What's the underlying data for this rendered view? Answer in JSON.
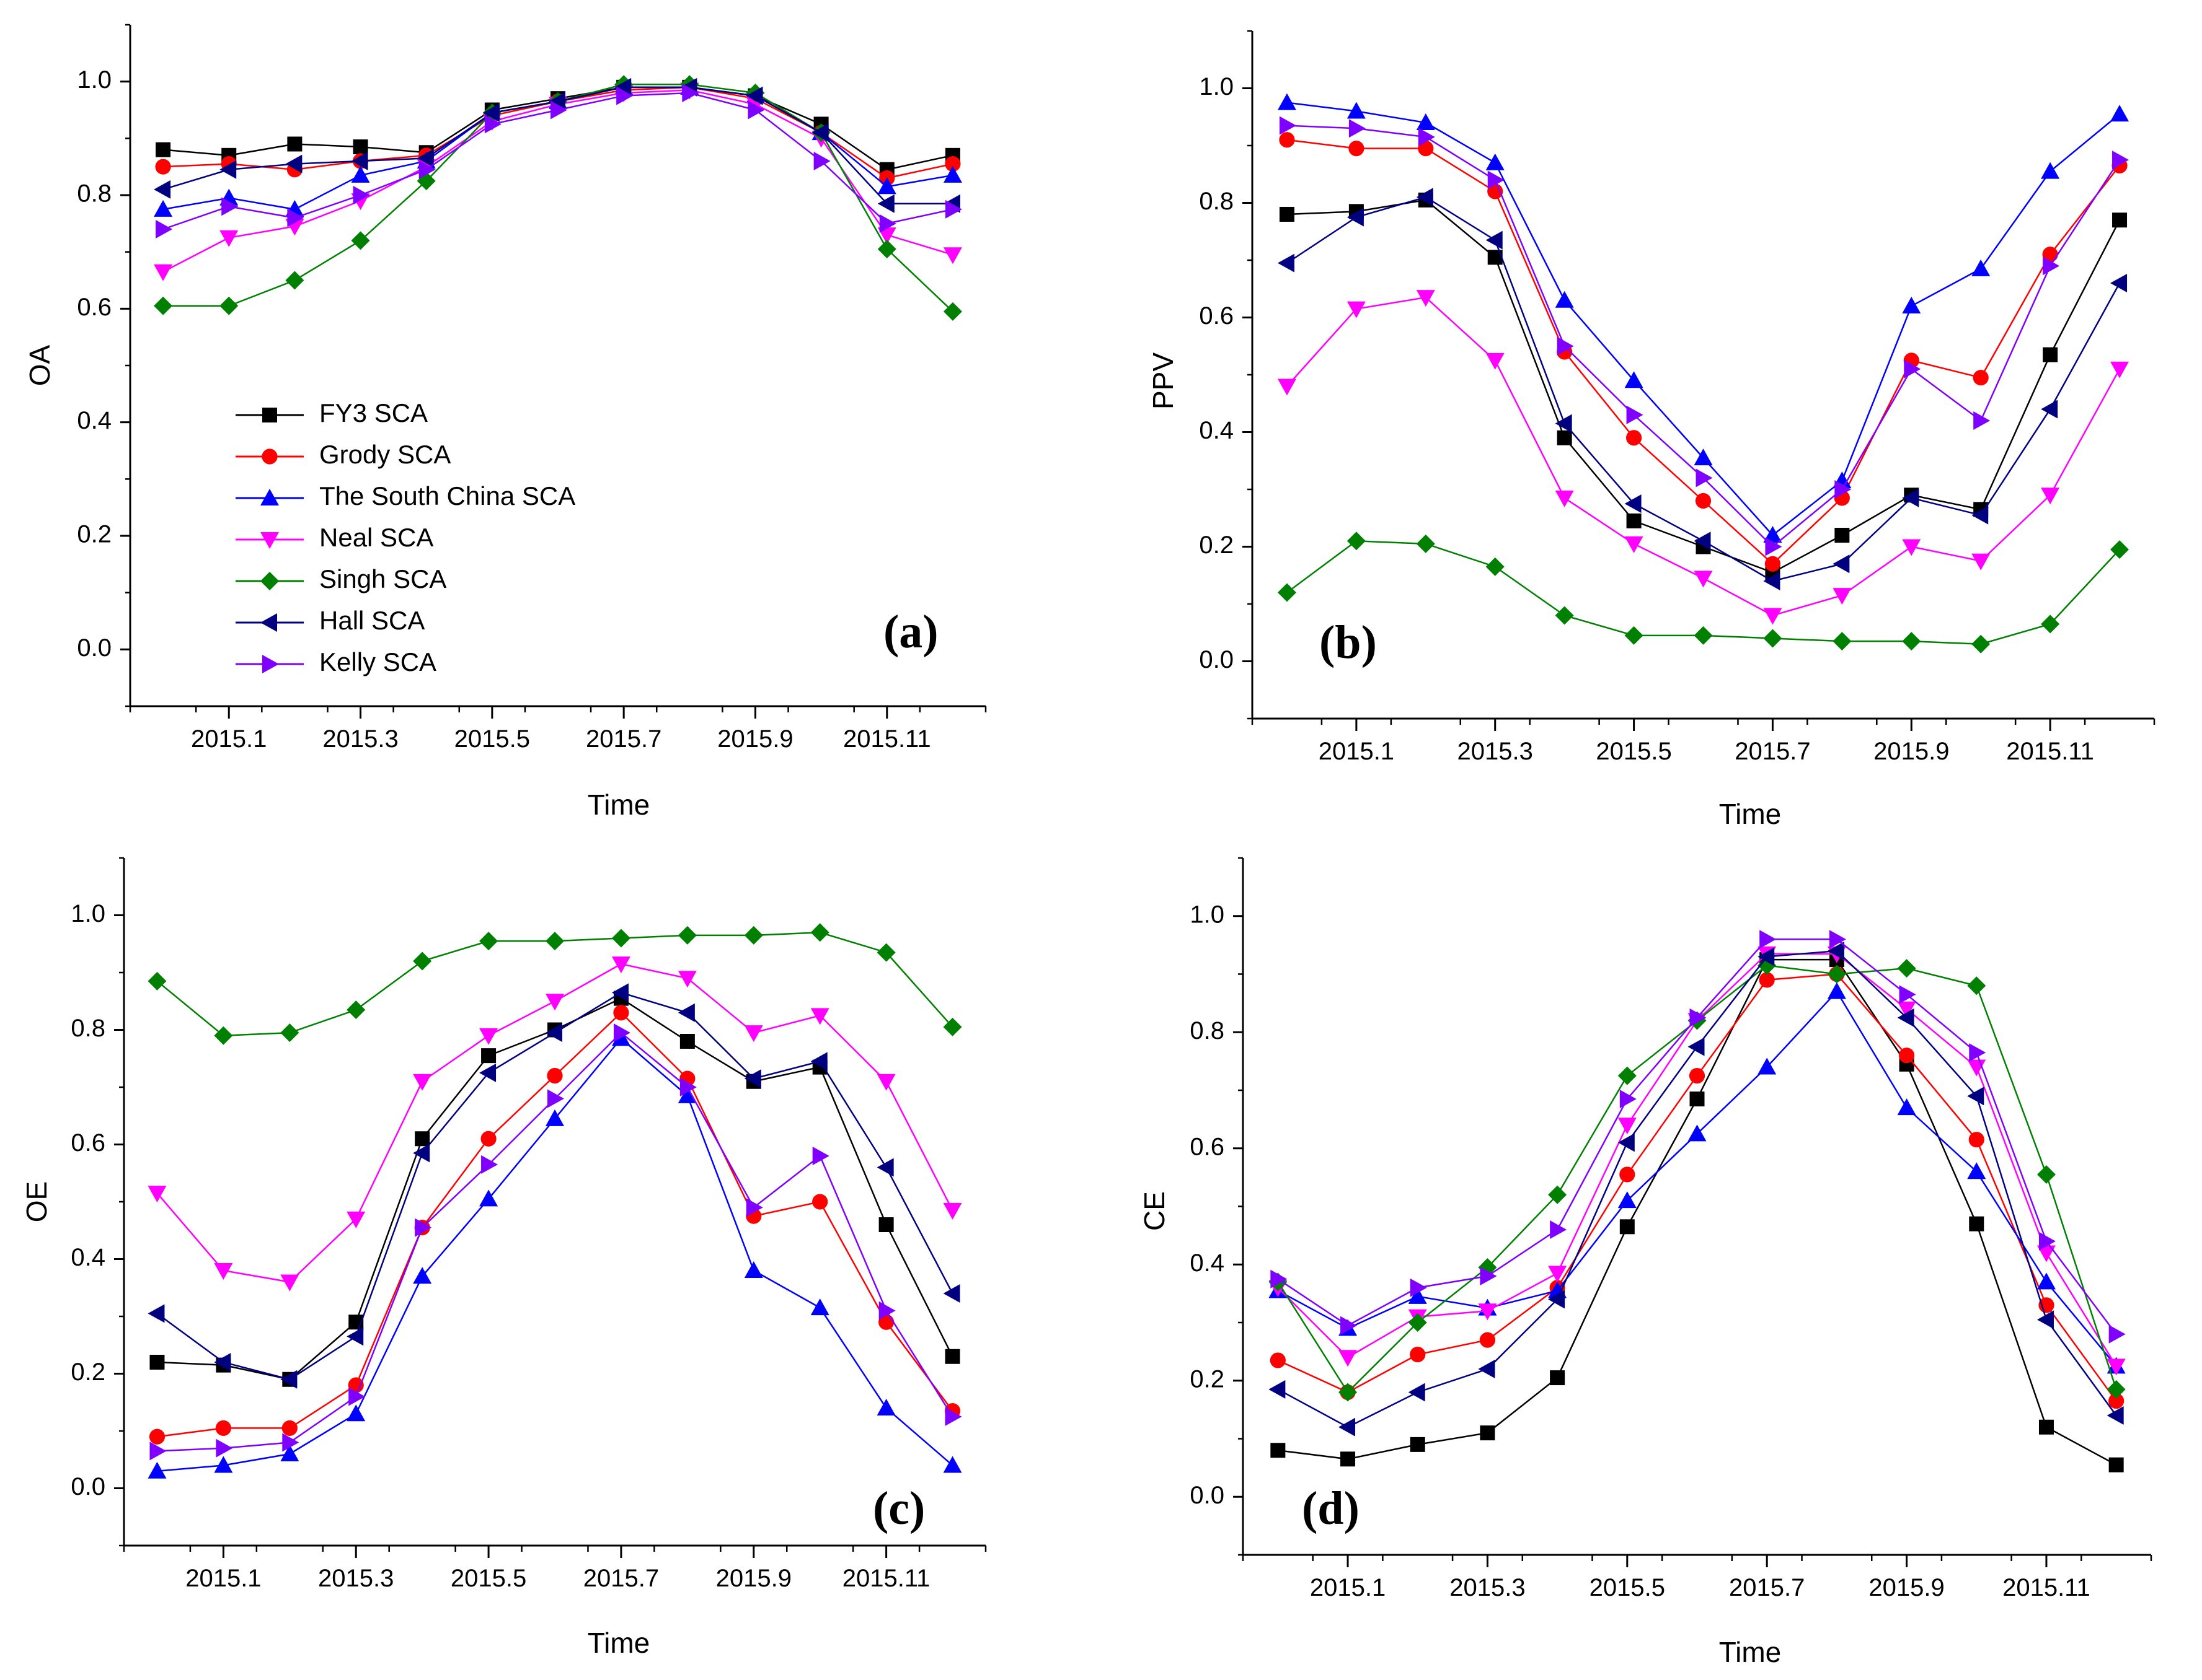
{
  "figure": {
    "series_styles": [
      {
        "name": "FY3 SCA",
        "color": "#000000",
        "marker": "square"
      },
      {
        "name": "Grody SCA",
        "color": "#ff0000",
        "marker": "circle"
      },
      {
        "name": "The South China SCA",
        "color": "#0000ff",
        "marker": "triangle-up"
      },
      {
        "name": "Neal SCA",
        "color": "#ff00ff",
        "marker": "triangle-down"
      },
      {
        "name": "Singh SCA",
        "color": "#008000",
        "marker": "diamond"
      },
      {
        "name": "Hall SCA",
        "color": "#000080",
        "marker": "triangle-left"
      },
      {
        "name": "Kelly SCA",
        "color": "#8000ff",
        "marker": "triangle-right"
      }
    ]
  },
  "chart_data": [
    {
      "type": "line",
      "panel_label": "(a)",
      "title": "",
      "xlabel": "Time",
      "ylabel": "OA",
      "x_ticks": [
        "2015.1",
        "2015.3",
        "2015.5",
        "2015.7",
        "2015.9",
        "2015.11"
      ],
      "y_ticks": [
        "0.0",
        "0.2",
        "0.4",
        "0.6",
        "0.8",
        "1.0"
      ],
      "ylim": [
        -0.1,
        1.1
      ],
      "xlim": [
        -0.5,
        12.5
      ],
      "x": [
        0,
        1,
        2,
        3,
        4,
        5,
        6,
        7,
        8,
        9,
        10,
        11,
        12
      ],
      "legend": "inside-lower-left",
      "series": [
        {
          "name": "FY3 SCA",
          "values": [
            0.88,
            0.87,
            0.89,
            0.885,
            0.875,
            0.95,
            0.97,
            0.99,
            0.99,
            0.975,
            0.925,
            0.845,
            0.87
          ]
        },
        {
          "name": "Grody SCA",
          "values": [
            0.85,
            0.855,
            0.845,
            0.86,
            0.87,
            0.94,
            0.965,
            0.985,
            0.99,
            0.97,
            0.91,
            0.83,
            0.855
          ]
        },
        {
          "name": "The South China SCA",
          "values": [
            0.775,
            0.795,
            0.775,
            0.835,
            0.86,
            0.945,
            0.965,
            0.99,
            0.99,
            0.975,
            0.91,
            0.815,
            0.835
          ]
        },
        {
          "name": "Neal SCA",
          "values": [
            0.665,
            0.725,
            0.745,
            0.79,
            0.85,
            0.93,
            0.96,
            0.98,
            0.985,
            0.96,
            0.9,
            0.73,
            0.695
          ]
        },
        {
          "name": "Singh SCA",
          "values": [
            0.605,
            0.605,
            0.65,
            0.72,
            0.825,
            0.945,
            0.965,
            0.995,
            0.995,
            0.98,
            0.91,
            0.705,
            0.595
          ]
        },
        {
          "name": "Hall SCA",
          "values": [
            0.81,
            0.845,
            0.855,
            0.86,
            0.865,
            0.945,
            0.965,
            0.99,
            0.99,
            0.975,
            0.91,
            0.785,
            0.785
          ]
        },
        {
          "name": "Kelly SCA",
          "values": [
            0.74,
            0.78,
            0.76,
            0.8,
            0.845,
            0.925,
            0.95,
            0.975,
            0.98,
            0.95,
            0.86,
            0.75,
            0.775
          ]
        }
      ]
    },
    {
      "type": "line",
      "panel_label": "(b)",
      "title": "",
      "xlabel": "Time",
      "ylabel": "PPV",
      "x_ticks": [
        "2015.1",
        "2015.3",
        "2015.5",
        "2015.7",
        "2015.9",
        "2015.11"
      ],
      "y_ticks": [
        "0.0",
        "0.2",
        "0.4",
        "0.6",
        "0.8",
        "1.0"
      ],
      "ylim": [
        -0.1,
        1.1
      ],
      "xlim": [
        -0.5,
        12.5
      ],
      "x": [
        0,
        1,
        2,
        3,
        4,
        5,
        6,
        7,
        8,
        9,
        10,
        11,
        12
      ],
      "series": [
        {
          "name": "FY3 SCA",
          "values": [
            0.78,
            0.785,
            0.805,
            0.705,
            0.39,
            0.245,
            0.2,
            0.155,
            0.22,
            0.29,
            0.265,
            0.535,
            0.77
          ]
        },
        {
          "name": "Grody SCA",
          "values": [
            0.91,
            0.895,
            0.895,
            0.82,
            0.54,
            0.39,
            0.28,
            0.17,
            0.285,
            0.525,
            0.495,
            0.71,
            0.865
          ]
        },
        {
          "name": "The South China SCA",
          "values": [
            0.975,
            0.96,
            0.94,
            0.87,
            0.63,
            0.49,
            0.355,
            0.22,
            0.315,
            0.62,
            0.685,
            0.855,
            0.955
          ]
        },
        {
          "name": "Neal SCA",
          "values": [
            0.48,
            0.615,
            0.635,
            0.525,
            0.285,
            0.205,
            0.145,
            0.08,
            0.115,
            0.2,
            0.175,
            0.29,
            0.51
          ]
        },
        {
          "name": "Singh SCA",
          "values": [
            0.12,
            0.21,
            0.205,
            0.165,
            0.08,
            0.045,
            0.045,
            0.04,
            0.035,
            0.035,
            0.03,
            0.065,
            0.195
          ]
        },
        {
          "name": "Hall SCA",
          "values": [
            0.695,
            0.775,
            0.81,
            0.735,
            0.415,
            0.275,
            0.21,
            0.14,
            0.17,
            0.285,
            0.255,
            0.44,
            0.66
          ]
        },
        {
          "name": "Kelly SCA",
          "values": [
            0.935,
            0.93,
            0.915,
            0.84,
            0.55,
            0.43,
            0.32,
            0.2,
            0.3,
            0.51,
            0.42,
            0.69,
            0.875
          ]
        }
      ]
    },
    {
      "type": "line",
      "panel_label": "(c)",
      "title": "",
      "xlabel": "Time",
      "ylabel": "OE",
      "x_ticks": [
        "2015.1",
        "2015.3",
        "2015.5",
        "2015.7",
        "2015.9",
        "2015.11"
      ],
      "y_ticks": [
        "0.0",
        "0.2",
        "0.4",
        "0.6",
        "0.8",
        "1.0"
      ],
      "ylim": [
        -0.1,
        1.1
      ],
      "xlim": [
        -0.5,
        12.5
      ],
      "x": [
        0,
        1,
        2,
        3,
        4,
        5,
        6,
        7,
        8,
        9,
        10,
        11,
        12
      ],
      "series": [
        {
          "name": "FY3 SCA",
          "values": [
            0.22,
            0.215,
            0.19,
            0.29,
            0.61,
            0.755,
            0.8,
            0.855,
            0.78,
            0.71,
            0.735,
            0.46,
            0.23
          ]
        },
        {
          "name": "Grody SCA",
          "values": [
            0.09,
            0.105,
            0.105,
            0.18,
            0.455,
            0.61,
            0.72,
            0.83,
            0.715,
            0.475,
            0.5,
            0.29,
            0.135
          ]
        },
        {
          "name": "The South China SCA",
          "values": [
            0.03,
            0.04,
            0.06,
            0.13,
            0.37,
            0.505,
            0.645,
            0.785,
            0.685,
            0.38,
            0.315,
            0.14,
            0.04
          ]
        },
        {
          "name": "Neal SCA",
          "values": [
            0.515,
            0.38,
            0.36,
            0.47,
            0.71,
            0.79,
            0.85,
            0.915,
            0.89,
            0.795,
            0.825,
            0.71,
            0.485
          ]
        },
        {
          "name": "Singh SCA",
          "values": [
            0.885,
            0.79,
            0.795,
            0.835,
            0.92,
            0.955,
            0.955,
            0.96,
            0.965,
            0.965,
            0.97,
            0.935,
            0.805
          ]
        },
        {
          "name": "Hall SCA",
          "values": [
            0.305,
            0.22,
            0.19,
            0.265,
            0.585,
            0.725,
            0.795,
            0.865,
            0.83,
            0.715,
            0.745,
            0.56,
            0.34
          ]
        },
        {
          "name": "Kelly SCA",
          "values": [
            0.065,
            0.07,
            0.08,
            0.16,
            0.455,
            0.565,
            0.68,
            0.795,
            0.7,
            0.49,
            0.58,
            0.31,
            0.125
          ]
        }
      ]
    },
    {
      "type": "line",
      "panel_label": "(d)",
      "title": "",
      "xlabel": "Time",
      "ylabel": "CE",
      "x_ticks": [
        "2015.1",
        "2015.3",
        "2015.5",
        "2015.7",
        "2015.9",
        "2015.11"
      ],
      "y_ticks": [
        "0.0",
        "0.2",
        "0.4",
        "0.6",
        "0.8",
        "1.0"
      ],
      "ylim": [
        -0.1,
        1.1
      ],
      "xlim": [
        -0.5,
        12.5
      ],
      "x": [
        0,
        1,
        2,
        3,
        4,
        5,
        6,
        7,
        8,
        9,
        10,
        11,
        12
      ],
      "series": [
        {
          "name": "FY3 SCA",
          "values": [
            0.08,
            0.065,
            0.09,
            0.11,
            0.205,
            0.465,
            0.685,
            0.925,
            0.925,
            0.745,
            0.47,
            0.12,
            0.055
          ]
        },
        {
          "name": "Grody SCA",
          "values": [
            0.235,
            0.18,
            0.245,
            0.27,
            0.36,
            0.555,
            0.725,
            0.89,
            0.9,
            0.76,
            0.615,
            0.33,
            0.165
          ]
        },
        {
          "name": "The South China SCA",
          "values": [
            0.355,
            0.29,
            0.345,
            0.325,
            0.355,
            0.51,
            0.625,
            0.74,
            0.87,
            0.67,
            0.56,
            0.37,
            0.225
          ]
        },
        {
          "name": "Neal SCA",
          "values": [
            0.36,
            0.24,
            0.31,
            0.32,
            0.385,
            0.64,
            0.82,
            0.935,
            0.935,
            0.84,
            0.74,
            0.42,
            0.225
          ]
        },
        {
          "name": "Singh SCA",
          "values": [
            0.37,
            0.18,
            0.3,
            0.395,
            0.52,
            0.725,
            0.82,
            0.915,
            0.9,
            0.91,
            0.88,
            0.555,
            0.185
          ]
        },
        {
          "name": "Hall SCA",
          "values": [
            0.185,
            0.12,
            0.18,
            0.22,
            0.34,
            0.61,
            0.775,
            0.93,
            0.94,
            0.825,
            0.69,
            0.305,
            0.14
          ]
        },
        {
          "name": "Kelly SCA",
          "values": [
            0.375,
            0.295,
            0.36,
            0.38,
            0.46,
            0.685,
            0.825,
            0.96,
            0.96,
            0.865,
            0.765,
            0.44,
            0.28
          ]
        }
      ]
    }
  ]
}
